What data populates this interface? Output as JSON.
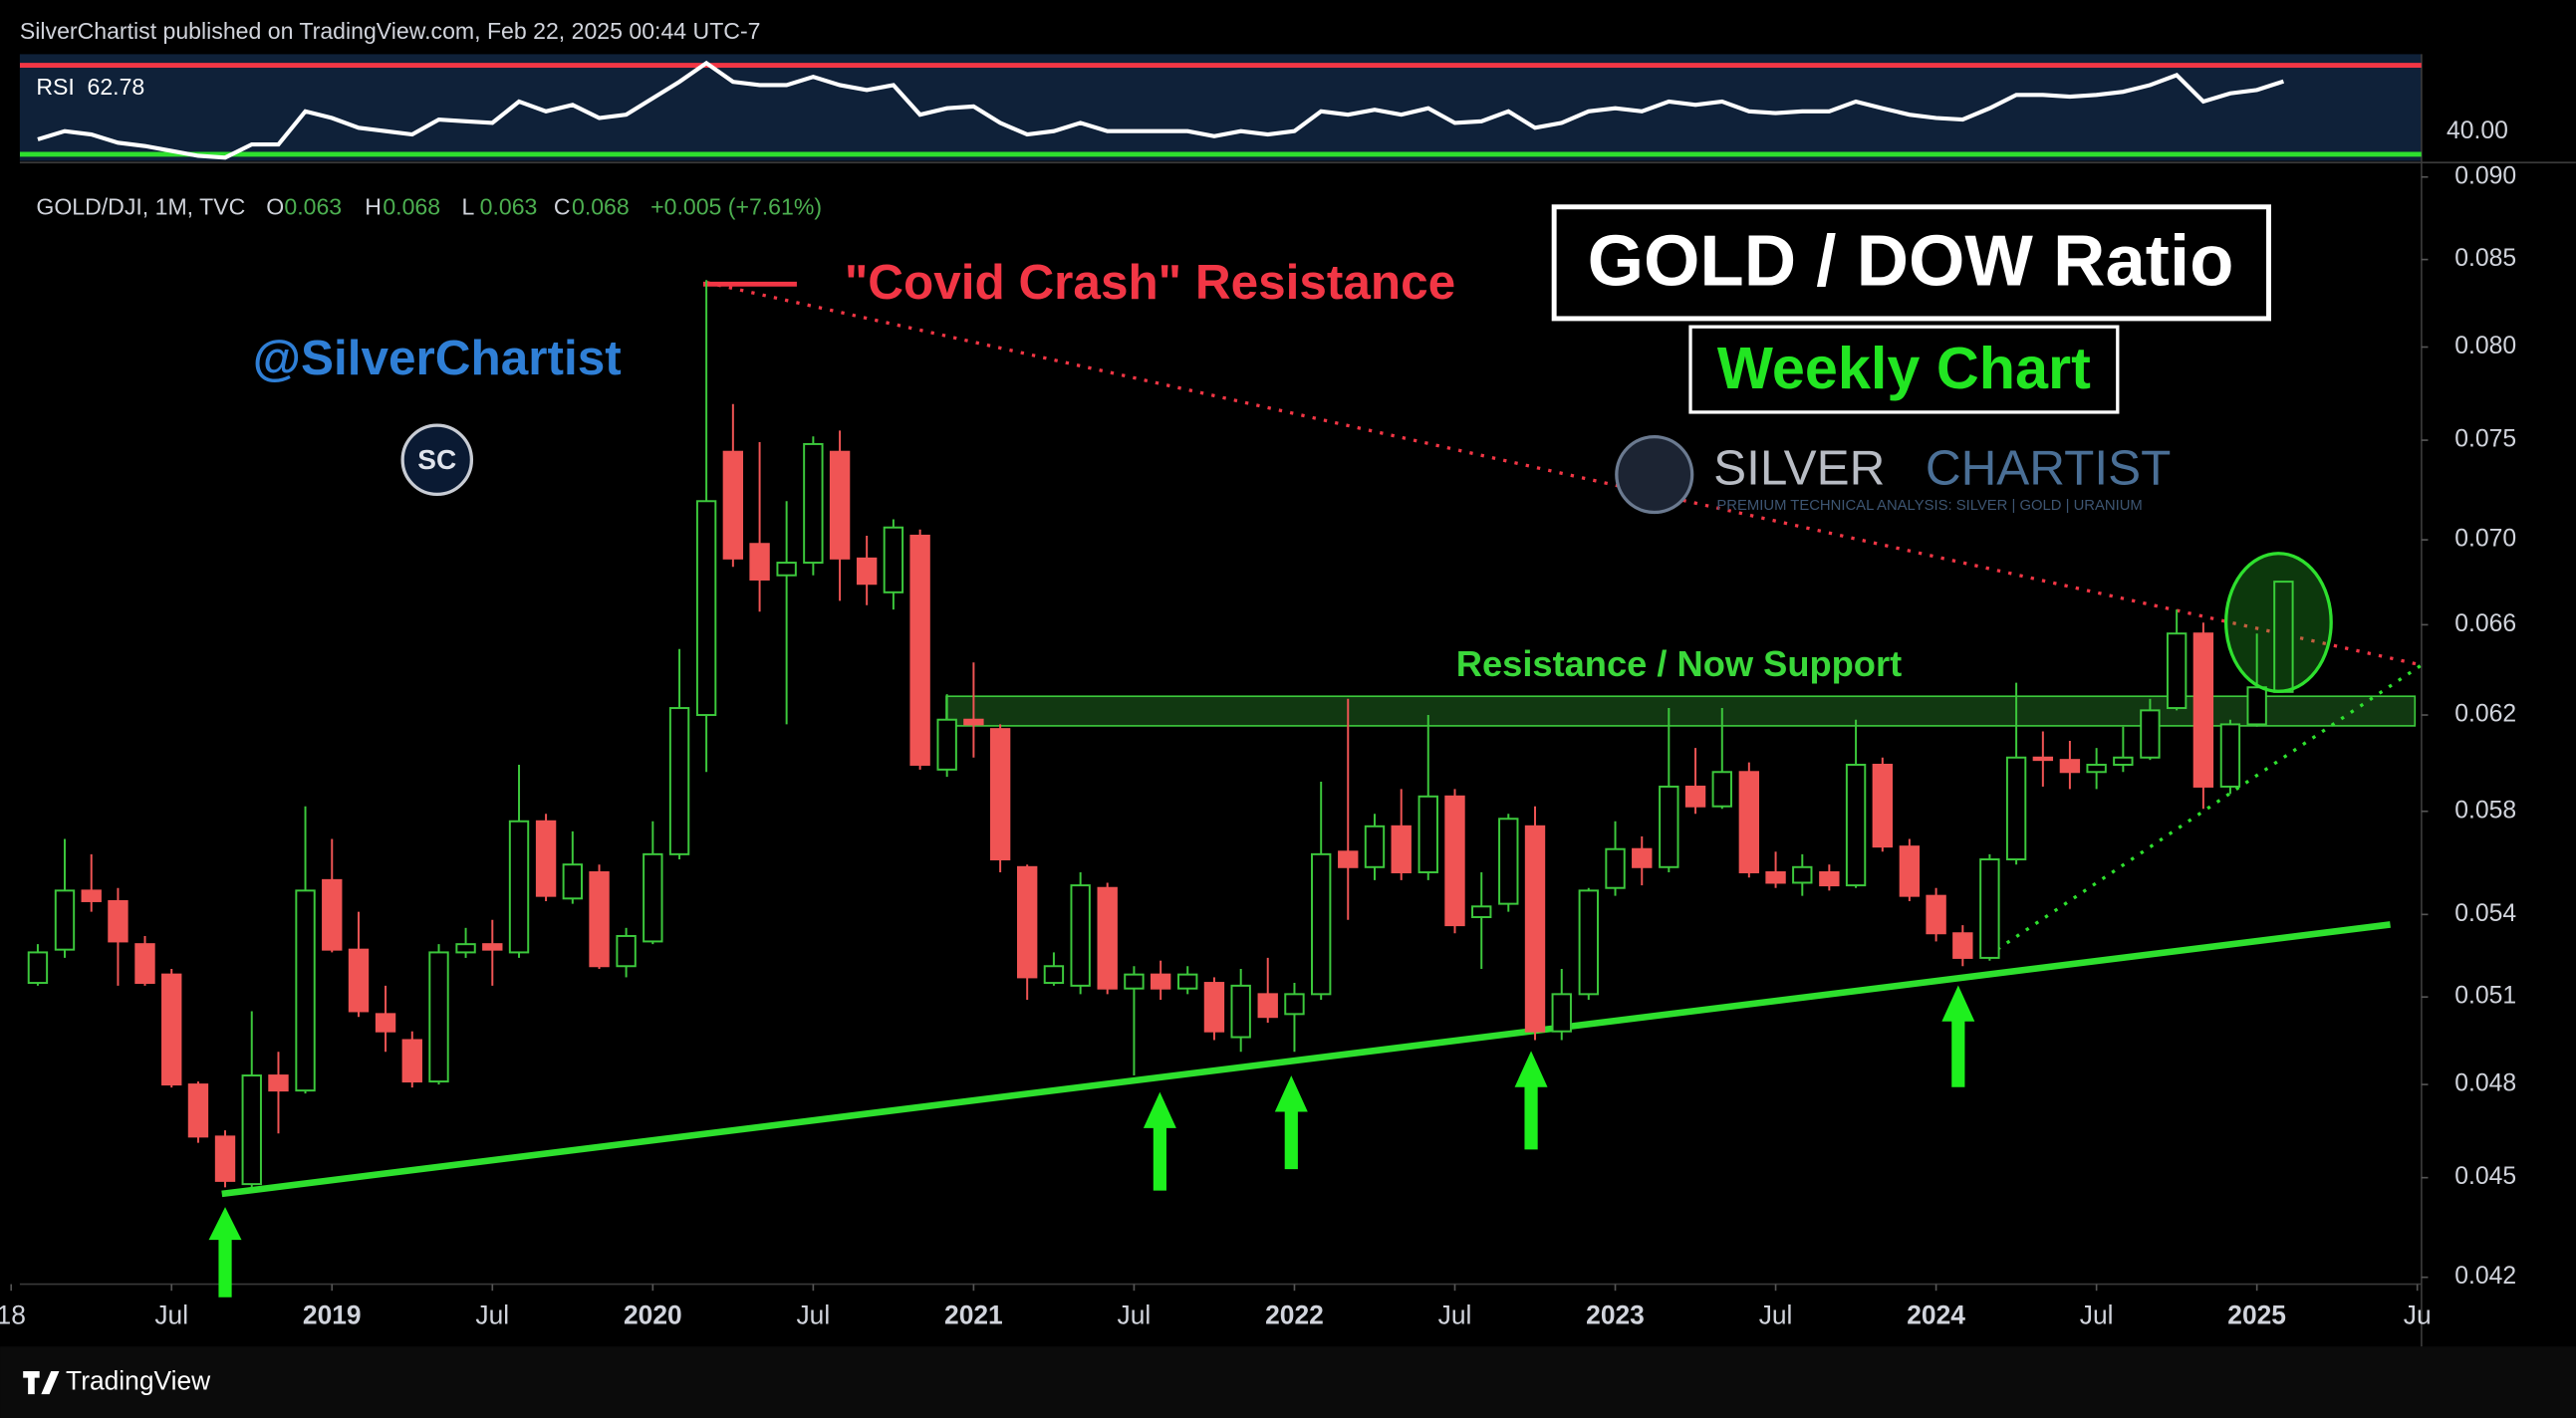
{
  "header": {
    "published": "SilverChartist published on TradingView.com, Feb 22, 2025 00:44 UTC-7"
  },
  "footer": {
    "brand": "TradingView"
  },
  "chart_data": [
    {
      "type": "candlestick",
      "symbol": "GOLD/DJI, 1M, TVC",
      "ohlc_keys": [
        "O",
        "H",
        "L",
        "C"
      ],
      "change": "+0.005 (+7.61%)",
      "title": "GOLD / DOW Ratio",
      "subtitle": "Weekly Chart",
      "annotations": {
        "covid": "\"Covid Crash\" Resistance",
        "handle": "@SilverChartist",
        "zone": "Resistance / Now Support",
        "badge": "SC",
        "logo_left": "SILVER",
        "logo_right": "CHARTIST",
        "logo_tagline": "PREMIUM TECHNICAL ANALYSIS: SILVER | GOLD | URANIUM"
      },
      "up_color": "#3cc83c",
      "down_color": "#f05454",
      "log_scale": true,
      "xlim": [
        2018.027,
        2025.513
      ],
      "xticks": [
        {
          "value": 2018,
          "label": "18"
        },
        {
          "value": 2018.5,
          "label": "Jul"
        },
        2019,
        {
          "value": 2019.5,
          "label": "Jul"
        },
        2020,
        {
          "value": 2020.5,
          "label": "Jul"
        },
        2021,
        {
          "value": 2021.5,
          "label": "Jul"
        },
        2022,
        {
          "value": 2022.5,
          "label": "Jul"
        },
        2023,
        {
          "value": 2023.5,
          "label": "Jul"
        },
        2024,
        {
          "value": 2024.5,
          "label": "Jul"
        },
        2025,
        {
          "value": 2025.5,
          "label": "Ju"
        }
      ],
      "ylim": [
        0.0418,
        0.0908
      ],
      "yticks": [
        {
          "value": 0.09,
          "label": "0.090"
        },
        0.085,
        {
          "value": 0.08,
          "label": "0.080"
        },
        0.075,
        {
          "value": 0.07,
          "label": "0.070"
        },
        0.066,
        0.062,
        0.058,
        0.054,
        0.051,
        0.048,
        0.045,
        0.042
      ],
      "x": [
        2018.083,
        2018.167,
        2018.25,
        2018.333,
        2018.417,
        2018.5,
        2018.583,
        2018.667,
        2018.75,
        2018.833,
        2018.917,
        2019,
        2019.083,
        2019.167,
        2019.25,
        2019.333,
        2019.417,
        2019.5,
        2019.583,
        2019.667,
        2019.75,
        2019.833,
        2019.917,
        2020,
        2020.083,
        2020.167,
        2020.25,
        2020.333,
        2020.417,
        2020.5,
        2020.583,
        2020.667,
        2020.75,
        2020.833,
        2020.917,
        2021,
        2021.083,
        2021.167,
        2021.25,
        2021.333,
        2021.417,
        2021.5,
        2021.583,
        2021.667,
        2021.75,
        2021.833,
        2021.917,
        2022,
        2022.083,
        2022.167,
        2022.25,
        2022.333,
        2022.417,
        2022.5,
        2022.583,
        2022.667,
        2022.75,
        2022.833,
        2022.917,
        2023,
        2023.083,
        2023.167,
        2023.25,
        2023.333,
        2023.417,
        2023.5,
        2023.583,
        2023.667,
        2023.75,
        2023.833,
        2023.917,
        2024,
        2024.083,
        2024.167,
        2024.25,
        2024.333,
        2024.417,
        2024.5,
        2024.583,
        2024.667,
        2024.75,
        2024.833,
        2024.917,
        2025,
        2025.083
      ],
      "open": [
        0.0515,
        0.0527,
        0.0549,
        0.0545,
        0.0529,
        0.0518,
        0.048,
        0.0463,
        0.0448,
        0.0483,
        0.0478,
        0.0553,
        0.0527,
        0.0504,
        0.0495,
        0.0481,
        0.0526,
        0.0529,
        0.0526,
        0.0576,
        0.0546,
        0.0556,
        0.0521,
        0.053,
        0.0563,
        0.062,
        0.0744,
        0.0698,
        0.0683,
        0.0689,
        0.0744,
        0.0691,
        0.0675,
        0.0702,
        0.0597,
        0.0618,
        0.0614,
        0.0558,
        0.0515,
        0.0514,
        0.055,
        0.0513,
        0.0518,
        0.0513,
        0.0515,
        0.0496,
        0.0511,
        0.0504,
        0.0511,
        0.0564,
        0.0558,
        0.0574,
        0.0556,
        0.0586,
        0.0539,
        0.0544,
        0.0574,
        0.0498,
        0.0511,
        0.055,
        0.0565,
        0.0558,
        0.059,
        0.0582,
        0.0596,
        0.0556,
        0.0552,
        0.0556,
        0.0551,
        0.0599,
        0.0566,
        0.0547,
        0.0533,
        0.0524,
        0.0561,
        0.0602,
        0.0601,
        0.0596,
        0.0599,
        0.0602,
        0.0623,
        0.0656,
        0.059,
        0.0616,
        0.063
      ],
      "high": [
        0.0529,
        0.0569,
        0.0563,
        0.055,
        0.0532,
        0.052,
        0.0481,
        0.0465,
        0.0505,
        0.0491,
        0.0582,
        0.0569,
        0.0541,
        0.0514,
        0.0498,
        0.0529,
        0.0535,
        0.0538,
        0.0599,
        0.0579,
        0.0572,
        0.0559,
        0.0535,
        0.0576,
        0.0649,
        0.0838,
        0.0769,
        0.0749,
        0.0719,
        0.0752,
        0.0755,
        0.0702,
        0.071,
        0.0705,
        0.0629,
        0.0643,
        0.0616,
        0.0559,
        0.0526,
        0.0556,
        0.0552,
        0.0521,
        0.0523,
        0.0521,
        0.0517,
        0.052,
        0.0524,
        0.0515,
        0.0592,
        0.0627,
        0.0579,
        0.0589,
        0.062,
        0.0589,
        0.0556,
        0.0579,
        0.0582,
        0.052,
        0.055,
        0.0576,
        0.057,
        0.0623,
        0.0606,
        0.0623,
        0.06,
        0.0564,
        0.0563,
        0.0559,
        0.0618,
        0.0602,
        0.0569,
        0.055,
        0.0536,
        0.0563,
        0.0634,
        0.0613,
        0.0609,
        0.0606,
        0.0615,
        0.0627,
        0.0667,
        0.0661,
        0.0618,
        0.0656,
        0.068
      ],
      "low": [
        0.0514,
        0.0524,
        0.0541,
        0.0514,
        0.0514,
        0.0479,
        0.0461,
        0.0447,
        0.0447,
        0.0464,
        0.0477,
        0.0526,
        0.0503,
        0.0491,
        0.0479,
        0.048,
        0.0524,
        0.0514,
        0.0524,
        0.0545,
        0.0544,
        0.052,
        0.0517,
        0.0529,
        0.0561,
        0.0596,
        0.0687,
        0.0666,
        0.0616,
        0.0683,
        0.0671,
        0.0669,
        0.0667,
        0.0597,
        0.0594,
        0.0602,
        0.0556,
        0.0509,
        0.0514,
        0.0511,
        0.0511,
        0.0483,
        0.0509,
        0.0511,
        0.0495,
        0.0491,
        0.0501,
        0.0491,
        0.0509,
        0.0538,
        0.0553,
        0.0553,
        0.0553,
        0.0533,
        0.052,
        0.0541,
        0.0495,
        0.0495,
        0.0509,
        0.0547,
        0.0551,
        0.0556,
        0.0579,
        0.0581,
        0.0554,
        0.055,
        0.0547,
        0.0549,
        0.055,
        0.0564,
        0.0545,
        0.053,
        0.0521,
        0.0523,
        0.0559,
        0.059,
        0.0589,
        0.0589,
        0.0596,
        0.0601,
        0.0622,
        0.0581,
        0.0587,
        0.0615,
        0.063
      ],
      "close": [
        0.0526,
        0.0549,
        0.0545,
        0.053,
        0.0515,
        0.048,
        0.0463,
        0.0449,
        0.0483,
        0.0478,
        0.0549,
        0.0527,
        0.0505,
        0.0498,
        0.0481,
        0.0526,
        0.0529,
        0.0527,
        0.0576,
        0.0547,
        0.0559,
        0.0521,
        0.0532,
        0.0563,
        0.0623,
        0.0719,
        0.0691,
        0.0681,
        0.0689,
        0.0748,
        0.0691,
        0.0679,
        0.0706,
        0.0599,
        0.0618,
        0.0616,
        0.0561,
        0.0517,
        0.0521,
        0.0551,
        0.0513,
        0.0518,
        0.0513,
        0.0518,
        0.0498,
        0.0514,
        0.0503,
        0.0511,
        0.0563,
        0.0558,
        0.0574,
        0.0556,
        0.0586,
        0.0536,
        0.0543,
        0.0577,
        0.0498,
        0.0511,
        0.0549,
        0.0565,
        0.0558,
        0.059,
        0.0582,
        0.0596,
        0.0556,
        0.0552,
        0.0558,
        0.0551,
        0.0599,
        0.0566,
        0.0547,
        0.0533,
        0.0524,
        0.0561,
        0.0602,
        0.0601,
        0.0596,
        0.0599,
        0.0602,
        0.0622,
        0.0656,
        0.059,
        0.0616,
        0.0632,
        0.068
      ]
    },
    {
      "type": "line",
      "xlim": [
        2018.027,
        2025.513
      ],
      "ylim": [
        27,
        75
      ],
      "yticks": [
        {
          "value": 40,
          "label": "40.00"
        }
      ],
      "bands": [
        {
          "value": 70,
          "color": "#f23645"
        },
        {
          "value": 30,
          "color": "#2ee02e"
        }
      ],
      "x": [
        2018.083,
        2018.167,
        2018.25,
        2018.333,
        2018.417,
        2018.5,
        2018.583,
        2018.667,
        2018.75,
        2018.833,
        2018.917,
        2019,
        2019.083,
        2019.167,
        2019.25,
        2019.333,
        2019.417,
        2019.5,
        2019.583,
        2019.667,
        2019.75,
        2019.833,
        2019.917,
        2020,
        2020.083,
        2020.167,
        2020.25,
        2020.333,
        2020.417,
        2020.5,
        2020.583,
        2020.667,
        2020.75,
        2020.833,
        2020.917,
        2021,
        2021.083,
        2021.167,
        2021.25,
        2021.333,
        2021.417,
        2021.5,
        2021.583,
        2021.667,
        2021.75,
        2021.833,
        2021.917,
        2022,
        2022.083,
        2022.167,
        2022.25,
        2022.333,
        2022.417,
        2022.5,
        2022.583,
        2022.667,
        2022.75,
        2022.833,
        2022.917,
        2023,
        2023.083,
        2023.167,
        2023.25,
        2023.333,
        2023.417,
        2023.5,
        2023.583,
        2023.667,
        2023.75,
        2023.833,
        2023.917,
        2024,
        2024.083,
        2024.167,
        2024.25,
        2024.333,
        2024.417,
        2024.5,
        2024.583,
        2024.667,
        2024.75,
        2024.833,
        2024.917,
        2025,
        2025.083
      ],
      "series": [
        {
          "name": "RSI",
          "color": "#ffffff",
          "values": [
            36.7,
            40.4,
            38.9,
            35.2,
            33.7,
            31.5,
            29.3,
            28.5,
            34.4,
            34.4,
            49.3,
            46.3,
            41.9,
            40.4,
            38.9,
            45.6,
            44.8,
            44.1,
            53.7,
            49.3,
            52.2,
            46.3,
            47.8,
            55.2,
            62.6,
            71,
            62.6,
            61.1,
            61.1,
            64.8,
            61.1,
            58.9,
            61.1,
            47.8,
            50.7,
            51.5,
            44.1,
            38.9,
            40.4,
            44.1,
            40.4,
            40.4,
            40.4,
            40.4,
            38.1,
            40.4,
            38.9,
            40.4,
            49.3,
            47.8,
            50,
            47.8,
            50.7,
            44.1,
            44.8,
            49.3,
            41.9,
            44.1,
            49.3,
            50.7,
            49.3,
            53.7,
            52.2,
            53.7,
            49.3,
            48.5,
            49.3,
            49.3,
            53.7,
            50.7,
            47.8,
            46.3,
            45.6,
            50.7,
            56.7,
            56.7,
            55.9,
            56.7,
            58.1,
            61.1,
            65.6,
            53.7,
            57.4,
            58.9,
            62.78
          ]
        }
      ]
    }
  ]
}
